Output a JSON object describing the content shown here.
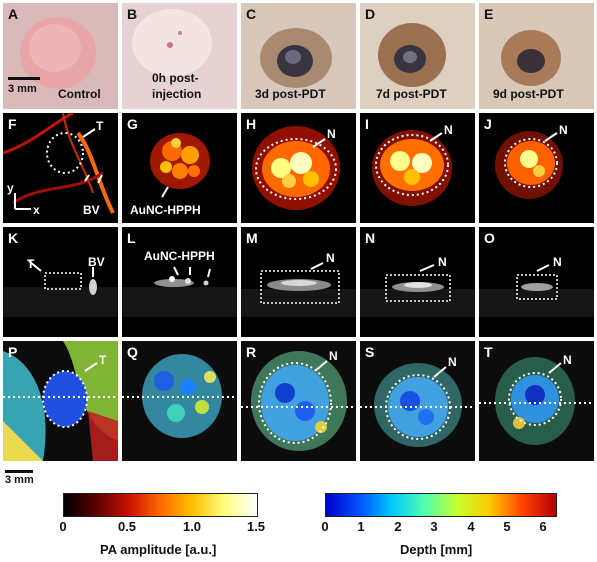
{
  "panels": {
    "A": {
      "label": "A",
      "caption": "Control"
    },
    "B": {
      "label": "B",
      "caption": "0h post-injection"
    },
    "C": {
      "label": "C",
      "caption": "3d post-PDT"
    },
    "D": {
      "label": "D",
      "caption": "7d post-PDT"
    },
    "E": {
      "label": "E",
      "caption": "9d post-PDT"
    },
    "F": {
      "label": "F"
    },
    "G": {
      "label": "G"
    },
    "H": {
      "label": "H"
    },
    "I": {
      "label": "I"
    },
    "J": {
      "label": "J"
    },
    "K": {
      "label": "K"
    },
    "L": {
      "label": "L"
    },
    "M": {
      "label": "M"
    },
    "N": {
      "label": "N"
    },
    "O": {
      "label": "O"
    },
    "P": {
      "label": "P"
    },
    "Q": {
      "label": "Q"
    },
    "R": {
      "label": "R"
    },
    "S": {
      "label": "S"
    },
    "T": {
      "label": "T"
    }
  },
  "caption_parts": {
    "B_line1": "0h post-",
    "B_line2": "injection"
  },
  "annotations": {
    "tumor": "T",
    "blood_vessel": "BV",
    "necrosis": "N",
    "agent": "AuNC-HPPH",
    "axis_y": "y",
    "axis_x": "x"
  },
  "scale_bars": {
    "photo": "3 mm",
    "bottom": "3 mm"
  },
  "colorbars": {
    "pa": {
      "title": "PA amplitude  [a.u.]",
      "ticks": [
        "0",
        "0.5",
        "1.0",
        "1.5"
      ],
      "colors": [
        "#000000",
        "#5a0000",
        "#c81000",
        "#ff6a00",
        "#ffc000",
        "#ffff80",
        "#ffffff"
      ]
    },
    "depth": {
      "title": "Depth [mm]",
      "ticks": [
        "0",
        "1",
        "2",
        "3",
        "4",
        "5",
        "6"
      ],
      "colors": [
        "#0000c8",
        "#0050ff",
        "#00c8ff",
        "#50ffb0",
        "#c8ff30",
        "#ffc800",
        "#ff4000",
        "#b40000"
      ]
    }
  }
}
